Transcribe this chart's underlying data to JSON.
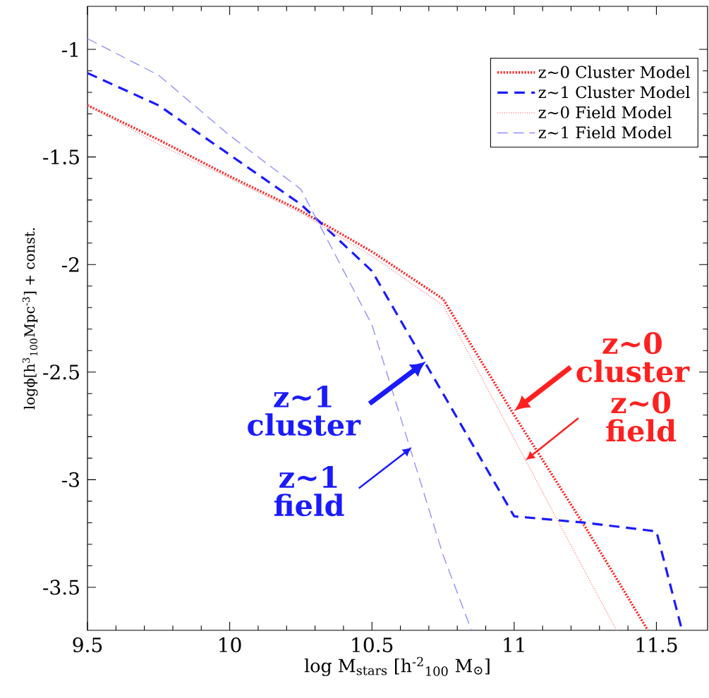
{
  "chart_data": {
    "type": "line",
    "xlabel": "log M$_{stars}$ [h$^{-2}$$_{100}$ M$_{⊙}$]",
    "ylabel": "logϕ[h$^{3}$$_{100}$Mpc$^{-3}$] + const.",
    "xlim": [
      9.5,
      11.68
    ],
    "ylim": [
      -3.7,
      -0.8
    ],
    "xticks": [
      9.5,
      10,
      10.5,
      11,
      11.5
    ],
    "yticks": [
      -3.5,
      -3,
      -2.5,
      -2,
      -1.5,
      -1
    ],
    "legend": "top right",
    "grid": false,
    "series": [
      {
        "name": "z~0 Cluster Model",
        "color": "#ff2020",
        "line_style": "dotted",
        "x": [
          9.5,
          9.75,
          10,
          10.25,
          10.5,
          10.75,
          11,
          11.25,
          11.47
        ],
        "values": [
          -1.26,
          -1.42,
          -1.59,
          -1.75,
          -1.94,
          -2.16,
          -2.7,
          -3.22,
          -3.7
        ]
      },
      {
        "name": "z~1 Cluster Model",
        "color": "#1a1aff",
        "line_style": "dashed",
        "x": [
          9.5,
          9.75,
          10,
          10.25,
          10.5,
          10.75,
          11,
          11.25,
          11.5,
          11.59
        ],
        "values": [
          -1.11,
          -1.26,
          -1.49,
          -1.72,
          -2.03,
          -2.6,
          -3.17,
          -3.2,
          -3.24,
          -3.7
        ]
      },
      {
        "name": "z~0 Field Model",
        "color": "#ff8c8c",
        "line_style": "dotted",
        "x": [
          9.5,
          9.75,
          10,
          10.25,
          10.5,
          10.75,
          11,
          11.25,
          11.36
        ],
        "values": [
          -1.26,
          -1.44,
          -1.6,
          -1.76,
          -1.96,
          -2.19,
          -2.81,
          -3.43,
          -3.7
        ]
      },
      {
        "name": "z~1 Field Model",
        "color": "#8c8cff",
        "line_style": "dashed",
        "x": [
          9.5,
          9.75,
          10,
          10.25,
          10.5,
          10.75,
          10.85
        ],
        "values": [
          -0.95,
          -1.12,
          -1.4,
          -1.65,
          -2.28,
          -3.35,
          -3.7
        ]
      }
    ],
    "annotations": [
      {
        "text": "z~1 cluster",
        "x": 10.69,
        "y": -2.45
      },
      {
        "text": "z~1 field",
        "x": 10.64,
        "y": -2.85
      },
      {
        "text": "z~0 cluster",
        "x": 11.0,
        "y": -2.68
      },
      {
        "text": "z~0 field",
        "x": 11.04,
        "y": -2.91
      }
    ]
  }
}
